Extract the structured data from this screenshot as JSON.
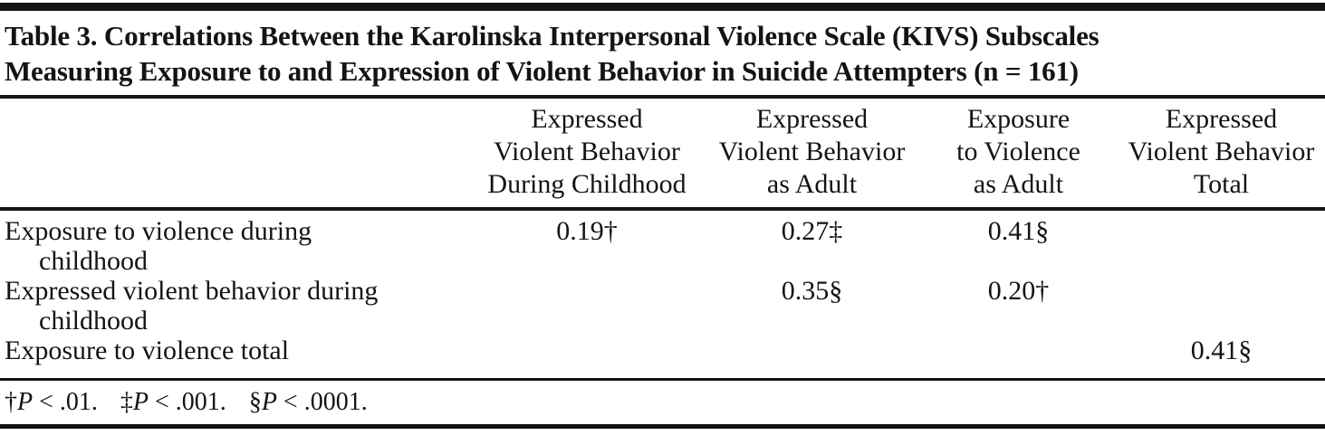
{
  "table": {
    "title_line1": "Table 3. Correlations Between the Karolinska Interpersonal Violence Scale (KIVS) Subscales",
    "title_line2": "Measuring Exposure to and Expression of Violent Behavior in Suicide Attempters (n = 161)",
    "columns": [
      "Expressed\nViolent Behavior\nDuring Childhood",
      "Expressed\nViolent Behavior\nas Adult",
      "Exposure\nto Violence\nas Adult",
      "Expressed\nViolent Behavior\nTotal"
    ],
    "rows": [
      {
        "label": "Exposure to violence during\nchildhood",
        "values": [
          "0.19†",
          "0.27‡",
          "0.41§",
          ""
        ]
      },
      {
        "label": "Expressed violent behavior during\nchildhood",
        "values": [
          "",
          "0.35§",
          "0.20†",
          ""
        ]
      },
      {
        "label": "Exposure to violence total",
        "values": [
          "",
          "",
          "",
          "0.41§"
        ]
      }
    ],
    "footnotes": [
      {
        "marker": "†",
        "p": "P",
        "condition": " < .01."
      },
      {
        "marker": "‡",
        "p": "P",
        "condition": " < .001."
      },
      {
        "marker": "§",
        "p": "P",
        "condition": " < .0001."
      }
    ],
    "sample_size": "n = 161"
  },
  "colors": {
    "text": "#141414",
    "rule": "#141414",
    "background": "#ffffff"
  }
}
